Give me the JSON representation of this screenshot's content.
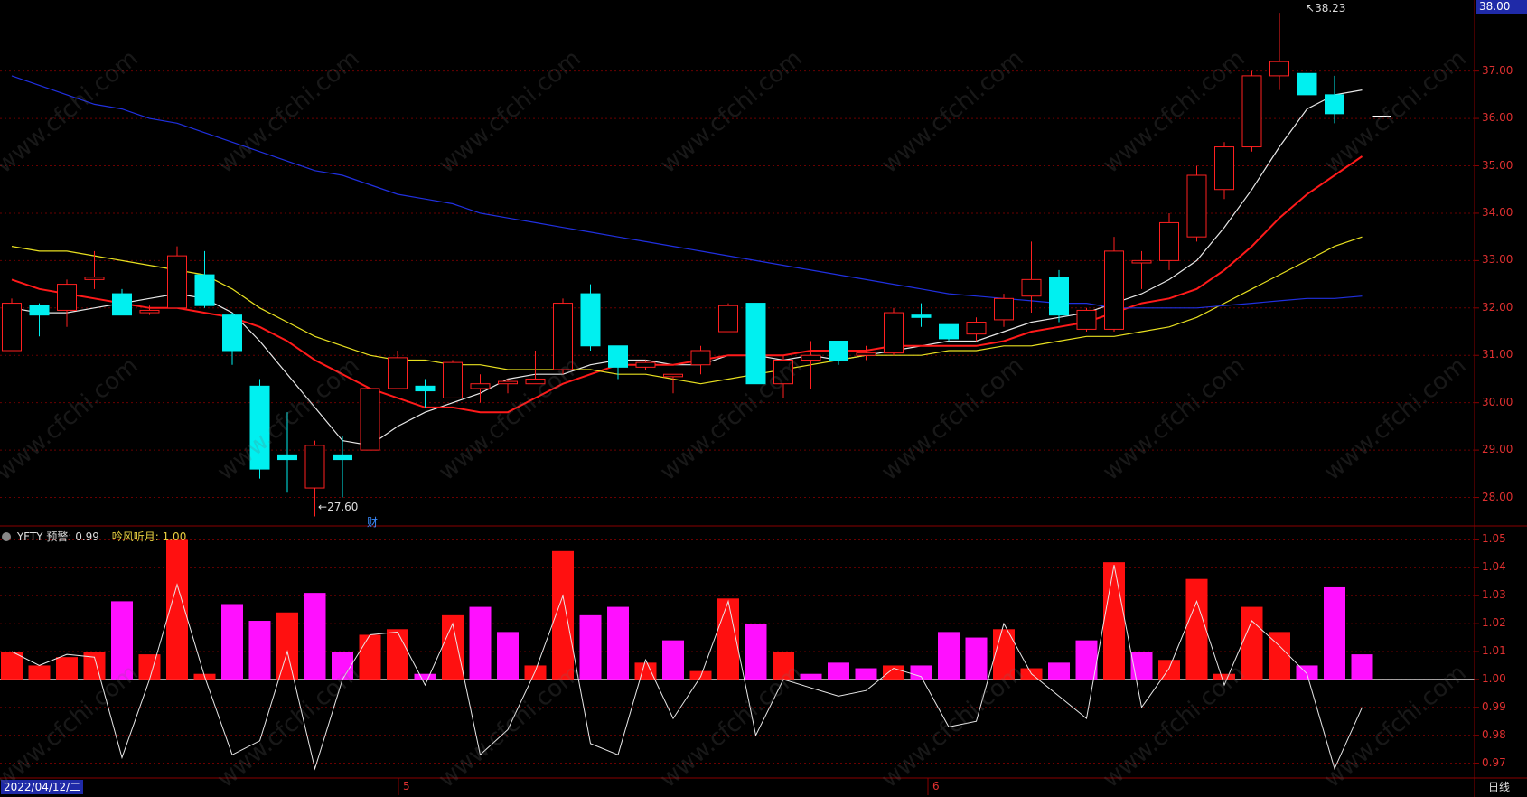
{
  "colors": {
    "up": "#ff2020",
    "down": "#00f0f0",
    "ma1": "#e8e8e8",
    "ma2": "#ff1a1a",
    "ma3": "#e8e020",
    "ma4": "#2030e0",
    "bar_up": "#ff1010",
    "bar_down": "#ff10ff",
    "grid": "#6a0000",
    "border": "#8a0000",
    "axis_text": "#e03030"
  },
  "header": {
    "top_price": "38.00"
  },
  "footer": {
    "date": "2022/04/12/二",
    "period": "日线",
    "month_5": "5",
    "month_6": "6"
  },
  "annotations": {
    "high": "38.23",
    "low": "27.60",
    "event": "财"
  },
  "indicator": {
    "name": "YFTY",
    "label1": "预警: 0.99",
    "label2": "吟风听月: 1.00"
  },
  "watermark": "www.cfchi.com",
  "chart_data": [
    {
      "type": "candlestick",
      "ylim": [
        27.4,
        38.5
      ],
      "yticks": [
        "28.00",
        "29.00",
        "30.00",
        "31.00",
        "32.00",
        "33.00",
        "34.00",
        "35.00",
        "36.00",
        "37.00"
      ],
      "candles": [
        {
          "o": 31.1,
          "h": 32.2,
          "l": 31.1,
          "c": 32.1
        },
        {
          "o": 32.05,
          "h": 32.1,
          "l": 31.4,
          "c": 31.85
        },
        {
          "o": 31.95,
          "h": 32.6,
          "l": 31.6,
          "c": 32.5
        },
        {
          "o": 32.6,
          "h": 33.2,
          "l": 32.4,
          "c": 32.65
        },
        {
          "o": 32.3,
          "h": 32.4,
          "l": 31.9,
          "c": 31.85
        },
        {
          "o": 31.9,
          "h": 32.05,
          "l": 31.85,
          "c": 31.95
        },
        {
          "o": 32.0,
          "h": 33.3,
          "l": 32.0,
          "c": 33.1
        },
        {
          "o": 32.7,
          "h": 33.2,
          "l": 32.0,
          "c": 32.05
        },
        {
          "o": 31.85,
          "h": 31.9,
          "l": 30.8,
          "c": 31.1
        },
        {
          "o": 30.35,
          "h": 30.5,
          "l": 28.4,
          "c": 28.6
        },
        {
          "o": 28.9,
          "h": 29.8,
          "l": 28.1,
          "c": 28.8
        },
        {
          "o": 28.2,
          "h": 29.2,
          "l": 27.6,
          "c": 29.1
        },
        {
          "o": 28.9,
          "h": 29.3,
          "l": 28.0,
          "c": 28.8
        },
        {
          "o": 29.0,
          "h": 30.4,
          "l": 29.0,
          "c": 30.3
        },
        {
          "o": 30.3,
          "h": 31.1,
          "l": 30.3,
          "c": 30.95
        },
        {
          "o": 30.35,
          "h": 30.5,
          "l": 29.9,
          "c": 30.25
        },
        {
          "o": 30.1,
          "h": 30.9,
          "l": 30.1,
          "c": 30.85
        },
        {
          "o": 30.3,
          "h": 30.6,
          "l": 30.0,
          "c": 30.4
        },
        {
          "o": 30.4,
          "h": 30.5,
          "l": 30.2,
          "c": 30.45
        },
        {
          "o": 30.4,
          "h": 31.1,
          "l": 30.4,
          "c": 30.5
        },
        {
          "o": 30.7,
          "h": 32.2,
          "l": 30.6,
          "c": 32.1
        },
        {
          "o": 32.3,
          "h": 32.5,
          "l": 31.1,
          "c": 31.2
        },
        {
          "o": 31.2,
          "h": 31.2,
          "l": 30.5,
          "c": 30.75
        },
        {
          "o": 30.75,
          "h": 30.9,
          "l": 30.7,
          "c": 30.85
        },
        {
          "o": 30.55,
          "h": 30.6,
          "l": 30.2,
          "c": 30.6
        },
        {
          "o": 30.8,
          "h": 31.2,
          "l": 30.6,
          "c": 31.1
        },
        {
          "o": 31.5,
          "h": 32.1,
          "l": 31.5,
          "c": 32.05
        },
        {
          "o": 32.1,
          "h": 32.1,
          "l": 30.4,
          "c": 30.4
        },
        {
          "o": 30.4,
          "h": 31.0,
          "l": 30.1,
          "c": 30.9
        },
        {
          "o": 30.9,
          "h": 31.3,
          "l": 30.3,
          "c": 31.0
        },
        {
          "o": 31.3,
          "h": 31.3,
          "l": 30.8,
          "c": 30.9
        },
        {
          "o": 31.0,
          "h": 31.2,
          "l": 30.9,
          "c": 31.05
        },
        {
          "o": 31.05,
          "h": 32.0,
          "l": 31.0,
          "c": 31.9
        },
        {
          "o": 31.85,
          "h": 32.1,
          "l": 31.6,
          "c": 31.8
        },
        {
          "o": 31.65,
          "h": 31.65,
          "l": 31.3,
          "c": 31.35
        },
        {
          "o": 31.45,
          "h": 31.8,
          "l": 31.3,
          "c": 31.7
        },
        {
          "o": 31.75,
          "h": 32.3,
          "l": 31.6,
          "c": 32.2
        },
        {
          "o": 32.25,
          "h": 33.4,
          "l": 31.9,
          "c": 32.6
        },
        {
          "o": 32.65,
          "h": 32.8,
          "l": 31.7,
          "c": 31.85
        },
        {
          "o": 31.55,
          "h": 32.0,
          "l": 31.5,
          "c": 31.95
        },
        {
          "o": 31.55,
          "h": 33.5,
          "l": 31.5,
          "c": 33.2
        },
        {
          "o": 32.95,
          "h": 33.2,
          "l": 32.4,
          "c": 33.0
        },
        {
          "o": 33.0,
          "h": 34.0,
          "l": 32.8,
          "c": 33.8
        },
        {
          "o": 33.5,
          "h": 35.0,
          "l": 33.4,
          "c": 34.8
        },
        {
          "o": 34.5,
          "h": 35.5,
          "l": 34.3,
          "c": 35.4
        },
        {
          "o": 35.4,
          "h": 37.0,
          "l": 35.3,
          "c": 36.9
        },
        {
          "o": 36.9,
          "h": 38.23,
          "l": 36.6,
          "c": 37.2
        },
        {
          "o": 36.95,
          "h": 37.5,
          "l": 36.4,
          "c": 36.5
        },
        {
          "o": 36.5,
          "h": 36.9,
          "l": 35.9,
          "c": 36.1
        }
      ],
      "ma": [
        {
          "name": "ma1",
          "values": [
            32.0,
            31.9,
            31.9,
            32.0,
            32.1,
            32.2,
            32.3,
            32.2,
            31.9,
            31.3,
            30.6,
            29.9,
            29.2,
            29.1,
            29.5,
            29.8,
            30.0,
            30.2,
            30.5,
            30.6,
            30.6,
            30.8,
            30.9,
            30.9,
            30.8,
            30.8,
            31.0,
            31.0,
            30.9,
            31.0,
            30.9,
            31.0,
            31.1,
            31.2,
            31.3,
            31.3,
            31.5,
            31.7,
            31.8,
            31.9,
            32.1,
            32.3,
            32.6,
            33.0,
            33.7,
            34.5,
            35.4,
            36.2,
            36.5,
            36.6
          ]
        },
        {
          "name": "ma2",
          "values": [
            32.6,
            32.4,
            32.3,
            32.2,
            32.1,
            32.0,
            32.0,
            31.9,
            31.8,
            31.6,
            31.3,
            30.9,
            30.6,
            30.3,
            30.1,
            29.9,
            29.9,
            29.8,
            29.8,
            30.1,
            30.4,
            30.6,
            30.8,
            30.8,
            30.8,
            30.9,
            31.0,
            31.0,
            31.0,
            31.1,
            31.1,
            31.1,
            31.2,
            31.2,
            31.2,
            31.2,
            31.3,
            31.5,
            31.6,
            31.7,
            31.9,
            32.1,
            32.2,
            32.4,
            32.8,
            33.3,
            33.9,
            34.4,
            34.8,
            35.2
          ]
        },
        {
          "name": "ma3",
          "values": [
            33.3,
            33.2,
            33.2,
            33.1,
            33.0,
            32.9,
            32.8,
            32.7,
            32.4,
            32.0,
            31.7,
            31.4,
            31.2,
            31.0,
            30.9,
            30.9,
            30.8,
            30.8,
            30.7,
            30.7,
            30.7,
            30.7,
            30.6,
            30.6,
            30.5,
            30.4,
            30.5,
            30.6,
            30.7,
            30.8,
            30.9,
            31.0,
            31.0,
            31.0,
            31.1,
            31.1,
            31.2,
            31.2,
            31.3,
            31.4,
            31.4,
            31.5,
            31.6,
            31.8,
            32.1,
            32.4,
            32.7,
            33.0,
            33.3,
            33.5
          ]
        },
        {
          "name": "ma4",
          "values": [
            36.9,
            36.7,
            36.5,
            36.3,
            36.2,
            36.0,
            35.9,
            35.7,
            35.5,
            35.3,
            35.1,
            34.9,
            34.8,
            34.6,
            34.4,
            34.3,
            34.2,
            34.0,
            33.9,
            33.8,
            33.7,
            33.6,
            33.5,
            33.4,
            33.3,
            33.2,
            33.1,
            33.0,
            32.9,
            32.8,
            32.7,
            32.6,
            32.5,
            32.4,
            32.3,
            32.25,
            32.2,
            32.15,
            32.1,
            32.1,
            32.0,
            32.0,
            32.0,
            32.0,
            32.05,
            32.1,
            32.15,
            32.2,
            32.2,
            32.25
          ]
        }
      ]
    },
    {
      "type": "bar",
      "name": "YFTY",
      "ylim": [
        0.965,
        1.055
      ],
      "yticks": [
        "0.97",
        "0.98",
        "0.99",
        "1.00",
        "1.01",
        "1.02",
        "1.03",
        "1.04",
        "1.05"
      ],
      "base": 1.0,
      "bars": [
        {
          "v": 1.01,
          "c": "up"
        },
        {
          "v": 1.005,
          "c": "up"
        },
        {
          "v": 1.008,
          "c": "up"
        },
        {
          "v": 1.01,
          "c": "up"
        },
        {
          "v": 1.028,
          "c": "down"
        },
        {
          "v": 1.009,
          "c": "up"
        },
        {
          "v": 1.05,
          "c": "up"
        },
        {
          "v": 1.002,
          "c": "up"
        },
        {
          "v": 1.027,
          "c": "down"
        },
        {
          "v": 1.021,
          "c": "down"
        },
        {
          "v": 1.024,
          "c": "up"
        },
        {
          "v": 1.031,
          "c": "down"
        },
        {
          "v": 1.01,
          "c": "down"
        },
        {
          "v": 1.016,
          "c": "up"
        },
        {
          "v": 1.018,
          "c": "up"
        },
        {
          "v": 1.002,
          "c": "down"
        },
        {
          "v": 1.023,
          "c": "up"
        },
        {
          "v": 1.026,
          "c": "down"
        },
        {
          "v": 1.017,
          "c": "down"
        },
        {
          "v": 1.005,
          "c": "up"
        },
        {
          "v": 1.046,
          "c": "up"
        },
        {
          "v": 1.023,
          "c": "down"
        },
        {
          "v": 1.026,
          "c": "down"
        },
        {
          "v": 1.006,
          "c": "up"
        },
        {
          "v": 1.014,
          "c": "down"
        },
        {
          "v": 1.003,
          "c": "up"
        },
        {
          "v": 1.029,
          "c": "up"
        },
        {
          "v": 1.02,
          "c": "down"
        },
        {
          "v": 1.01,
          "c": "up"
        },
        {
          "v": 1.002,
          "c": "down"
        },
        {
          "v": 1.006,
          "c": "down"
        },
        {
          "v": 1.004,
          "c": "down"
        },
        {
          "v": 1.005,
          "c": "up"
        },
        {
          "v": 1.005,
          "c": "down"
        },
        {
          "v": 1.017,
          "c": "down"
        },
        {
          "v": 1.015,
          "c": "down"
        },
        {
          "v": 1.018,
          "c": "up"
        },
        {
          "v": 1.004,
          "c": "up"
        },
        {
          "v": 1.006,
          "c": "down"
        },
        {
          "v": 1.014,
          "c": "down"
        },
        {
          "v": 1.042,
          "c": "up"
        },
        {
          "v": 1.01,
          "c": "down"
        },
        {
          "v": 1.007,
          "c": "up"
        },
        {
          "v": 1.036,
          "c": "up"
        },
        {
          "v": 1.002,
          "c": "up"
        },
        {
          "v": 1.026,
          "c": "up"
        },
        {
          "v": 1.017,
          "c": "up"
        },
        {
          "v": 1.005,
          "c": "down"
        },
        {
          "v": 1.033,
          "c": "down"
        },
        {
          "v": 1.009,
          "c": "down"
        }
      ],
      "line": [
        1.01,
        1.005,
        1.009,
        1.008,
        0.972,
        1.0,
        1.034,
        1.001,
        0.973,
        0.978,
        1.01,
        0.968,
        1.0,
        1.016,
        1.017,
        0.998,
        1.02,
        0.973,
        0.982,
        1.003,
        1.03,
        0.977,
        0.973,
        1.007,
        0.986,
        1.001,
        1.028,
        0.98,
        1.0,
        0.997,
        0.994,
        0.996,
        1.004,
        1.001,
        0.983,
        0.985,
        1.02,
        1.002,
        0.994,
        0.986,
        1.041,
        0.99,
        1.004,
        1.028,
        0.998,
        1.021,
        1.012,
        1.002,
        0.968,
        0.99
      ]
    }
  ]
}
